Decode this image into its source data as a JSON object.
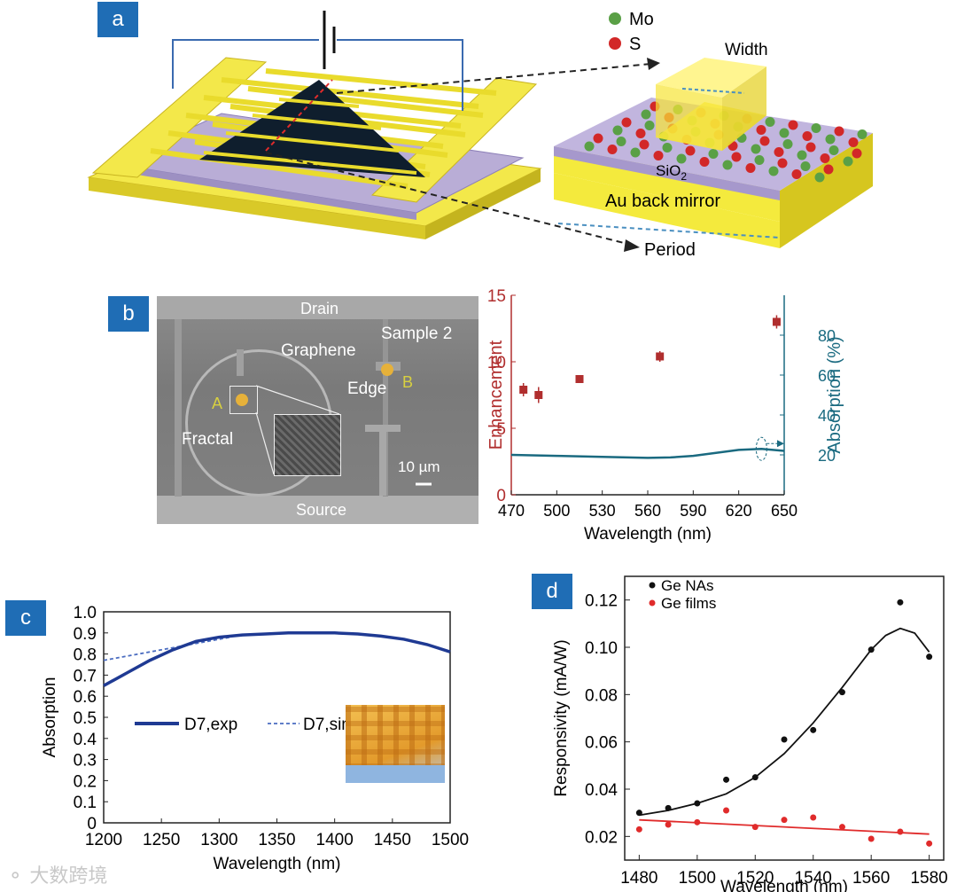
{
  "panels": {
    "a": {
      "tag": "a",
      "legend": {
        "mo": "Mo",
        "s": "S"
      },
      "labels": {
        "width": "Width",
        "sio2_main": "SiO",
        "sio2_sub": "2",
        "mirror": "Au back mirror",
        "period": "Period"
      },
      "colors": {
        "gold": "#f0e63c",
        "violet": "#b4a8d2",
        "mo": "#5aa046",
        "s": "#d22828",
        "dark": "#0f1e2d"
      }
    },
    "b": {
      "tag": "b",
      "image_labels": {
        "drain": "Drain",
        "graphene": "Graphene",
        "sample": "Sample 2",
        "edge": "Edge",
        "a": "A",
        "b": "B",
        "fractal": "Fractal",
        "scale": "10 µm",
        "source": "Source"
      }
    },
    "c": {
      "tag": "c"
    },
    "d": {
      "tag": "d"
    }
  },
  "chart_data": [
    {
      "id": "b",
      "type": "scatter",
      "xlabel": "Wavelength (nm)",
      "ylabel": "Enhancement",
      "y2label": "Absorption (%)",
      "xlim": [
        470,
        650
      ],
      "xticks": [
        470,
        500,
        530,
        560,
        590,
        620,
        650
      ],
      "ylim": [
        0,
        15
      ],
      "yticks": [
        0,
        5,
        10,
        15
      ],
      "y2lim": [
        0,
        100
      ],
      "y2ticks": [
        20,
        40,
        60,
        80
      ],
      "series": [
        {
          "name": "Enhancement",
          "color": "#b02e2e",
          "x": [
            478,
            488,
            515,
            568,
            645
          ],
          "y": [
            7.9,
            7.5,
            8.7,
            10.4,
            13.0
          ],
          "err": [
            0.5,
            0.6,
            0.2,
            0.4,
            0.5
          ]
        },
        {
          "name": "Absorption",
          "color": "#1a6a80",
          "x": [
            470,
            500,
            530,
            560,
            575,
            590,
            605,
            620,
            635,
            650
          ],
          "y": [
            20,
            19.5,
            19,
            18.5,
            18.7,
            19.5,
            21,
            22.5,
            23,
            22
          ]
        }
      ]
    },
    {
      "id": "c",
      "type": "line",
      "xlabel": "Wavelength (nm)",
      "ylabel": "Absorption",
      "xlim": [
        1200,
        1500
      ],
      "xticks": [
        1200,
        1250,
        1300,
        1350,
        1400,
        1450,
        1500
      ],
      "ylim": [
        0,
        1.0
      ],
      "yticks": [
        0,
        0.1,
        0.2,
        0.3,
        0.4,
        0.5,
        0.6,
        0.7,
        0.8,
        0.9,
        1.0
      ],
      "series": [
        {
          "name": "D7,exp",
          "color": "#1f3a93",
          "x": [
            1200,
            1220,
            1240,
            1260,
            1280,
            1300,
            1320,
            1340,
            1360,
            1380,
            1400,
            1420,
            1440,
            1460,
            1480,
            1500
          ],
          "y": [
            0.65,
            0.71,
            0.77,
            0.82,
            0.86,
            0.88,
            0.89,
            0.895,
            0.9,
            0.9,
            0.9,
            0.895,
            0.885,
            0.87,
            0.845,
            0.81
          ]
        },
        {
          "name": "D7,sim",
          "color": "#4a6cc0",
          "x": [
            1200,
            1230,
            1260,
            1290,
            1310
          ],
          "y": [
            0.77,
            0.8,
            0.83,
            0.86,
            0.88
          ]
        }
      ]
    },
    {
      "id": "d",
      "type": "scatter",
      "xlabel": "Wavelength (nm)",
      "ylabel": "Responsivity (mA/W)",
      "xlim": [
        1475,
        1585
      ],
      "xticks": [
        1480,
        1500,
        1520,
        1540,
        1560,
        1580
      ],
      "ylim": [
        0.01,
        0.13
      ],
      "yticks": [
        0.02,
        0.04,
        0.06,
        0.08,
        0.1,
        0.12
      ],
      "ytick_labels": [
        "0.02",
        "0.04",
        "0.06",
        "0.08",
        "0.10",
        "0.12"
      ],
      "series": [
        {
          "name": "Ge NAs",
          "color": "#111111",
          "x": [
            1480,
            1490,
            1500,
            1510,
            1520,
            1530,
            1540,
            1550,
            1560,
            1570,
            1580
          ],
          "y": [
            0.03,
            0.032,
            0.034,
            0.044,
            0.045,
            0.061,
            0.065,
            0.081,
            0.099,
            0.119,
            0.096
          ]
        },
        {
          "name": "Ge films",
          "color": "#e02b2b",
          "x": [
            1480,
            1490,
            1500,
            1510,
            1520,
            1530,
            1540,
            1550,
            1560,
            1570,
            1580
          ],
          "y": [
            0.023,
            0.025,
            0.026,
            0.031,
            0.024,
            0.027,
            0.028,
            0.024,
            0.019,
            0.022,
            0.017
          ]
        }
      ],
      "fits": [
        {
          "name": "Ge NAs fit",
          "color": "#111111",
          "x": [
            1480,
            1490,
            1500,
            1510,
            1520,
            1530,
            1540,
            1550,
            1560,
            1565,
            1570,
            1575,
            1580
          ],
          "y": [
            0.029,
            0.031,
            0.034,
            0.038,
            0.045,
            0.055,
            0.068,
            0.083,
            0.099,
            0.105,
            0.108,
            0.106,
            0.098
          ]
        },
        {
          "name": "Ge films fit",
          "color": "#e02b2b",
          "x": [
            1480,
            1580
          ],
          "y": [
            0.027,
            0.021
          ]
        }
      ]
    }
  ]
}
